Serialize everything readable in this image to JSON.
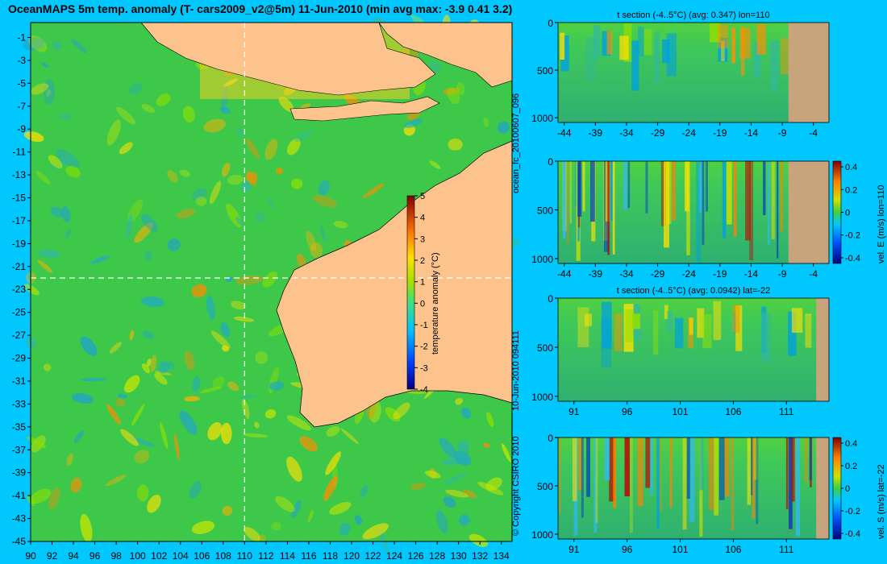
{
  "title": "OceanMAPS 5m temp. anomaly (T- cars2009_v2@5m) 11-Jun-2010 (min avg max: -3.9 0.41 3.2)",
  "side_labels": {
    "run_id": "ocean_fc_20100607_096",
    "run_time": "10-Jun-2010 094111",
    "copyright": "© Copyright CSIRO 2010"
  },
  "colors": {
    "background": "#00c8ff",
    "land": "#fcc48c",
    "section_land": "#c8a47c"
  },
  "chart_data": [
    {
      "type": "heatmap",
      "name": "map",
      "title": "OceanMAPS 5m temp. anomaly (T- cars2009_v2@5m) 11-Jun-2010 (min avg max: -3.9 0.41 3.2)",
      "x_ticks": [
        90,
        92,
        94,
        96,
        98,
        100,
        102,
        104,
        106,
        108,
        110,
        112,
        114,
        116,
        118,
        120,
        122,
        124,
        126,
        128,
        130,
        132,
        134
      ],
      "y_ticks": [
        -1,
        -3,
        -5,
        -7,
        -9,
        -11,
        -13,
        -15,
        -17,
        -19,
        -21,
        -23,
        -25,
        -27,
        -29,
        -31,
        -33,
        -35,
        -37,
        -39,
        -41,
        -43,
        -45
      ],
      "xlim": [
        90,
        135
      ],
      "ylim": [
        -45,
        0.3
      ],
      "crosshair": {
        "lon": 110,
        "lat": -22
      },
      "colorbar": {
        "label": "temperature anomaly (°C)",
        "ticks": [
          5,
          4,
          3,
          2,
          1,
          0,
          -1,
          -2,
          -3,
          -4
        ],
        "range": [
          -4,
          5
        ]
      },
      "stats": {
        "min": -3.9,
        "avg": 0.41,
        "max": 3.2
      }
    },
    {
      "type": "heatmap",
      "name": "t-section-lon",
      "title": "t section (-4..5°C) (avg: 0.347) lon=110",
      "x_ticks": [
        "-44",
        "-39",
        "-34",
        "-29",
        "-24",
        "-19",
        "-14",
        "-9",
        "-4"
      ],
      "y_ticks": [
        "0",
        "500",
        "1000"
      ],
      "xlim": [
        -45,
        -1.5
      ],
      "ylim": [
        0,
        1050
      ],
      "land_from_x": -8
    },
    {
      "type": "heatmap",
      "name": "vel-e-section",
      "x_ticks": [
        "-44",
        "-39",
        "-34",
        "-29",
        "-24",
        "-19",
        "-14",
        "-9",
        "-4"
      ],
      "y_ticks": [
        "0",
        "500",
        "1000"
      ],
      "xlim": [
        -45,
        -1.5
      ],
      "ylim": [
        0,
        1050
      ],
      "land_from_x": -8,
      "colorbar": {
        "label": "vel. E (m/s) lon=110",
        "ticks": [
          "0.4",
          "0.2",
          "0",
          "-0.2",
          "-0.4"
        ],
        "range": [
          -0.45,
          0.45
        ]
      }
    },
    {
      "type": "heatmap",
      "name": "t-section-lat",
      "title": "t section (-4..5°C) (avg: 0.0942) lat=-22",
      "x_ticks": [
        "91",
        "96",
        "101",
        "106",
        "111"
      ],
      "y_ticks": [
        "0",
        "500",
        "1000"
      ],
      "xlim": [
        89.5,
        115
      ],
      "ylim": [
        0,
        1050
      ],
      "land_from_x": 113.8
    },
    {
      "type": "heatmap",
      "name": "vel-s-section",
      "x_ticks": [
        "91",
        "96",
        "101",
        "106",
        "111"
      ],
      "y_ticks": [
        "0",
        "500",
        "1000"
      ],
      "xlim": [
        89.5,
        115
      ],
      "ylim": [
        0,
        1050
      ],
      "land_from_x": 113.8,
      "colorbar": {
        "label": "vel. S (m/s) lat=-22",
        "ticks": [
          "0.4",
          "0.2",
          "0",
          "-0.2",
          "-0.4"
        ],
        "range": [
          -0.45,
          0.45
        ]
      }
    }
  ]
}
